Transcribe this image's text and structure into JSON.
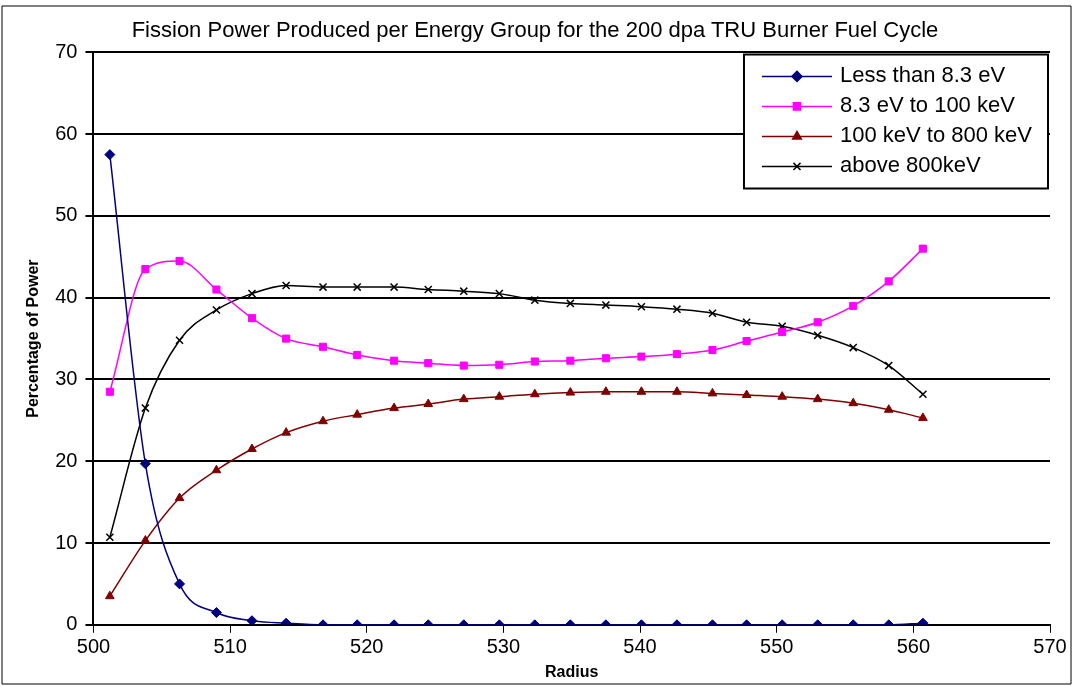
{
  "chart_data": {
    "type": "line",
    "title": "Fission Power Produced per Energy Group for the 200 dpa TRU Burner Fuel Cycle",
    "xlabel": "Radius",
    "ylabel": "Percentage of Power",
    "x": [
      501.2,
      503.8,
      506.3,
      509,
      511.6,
      514.1,
      516.8,
      519.3,
      522,
      524.5,
      527.1,
      529.7,
      532.3,
      534.9,
      537.5,
      540.1,
      542.7,
      545.3,
      547.8,
      550.4,
      553,
      555.6,
      558.2,
      560.7
    ],
    "series": [
      {
        "name": "Less than 8.3 eV",
        "color": "#000080",
        "marker": "diamond",
        "values": [
          57.5,
          19.7,
          5,
          1.5,
          0.5,
          0.2,
          0,
          0,
          0,
          0,
          0,
          0,
          0,
          0,
          0,
          0,
          0,
          0,
          0,
          0,
          0,
          0,
          0,
          0.2
        ]
      },
      {
        "name": "8.3 eV to 100 keV",
        "color": "#ff00ff",
        "marker": "square",
        "values": [
          28.5,
          43.5,
          44.5,
          41,
          37.5,
          35,
          34,
          33,
          32.3,
          32,
          31.7,
          31.8,
          32.2,
          32.3,
          32.6,
          32.8,
          33.1,
          33.6,
          34.7,
          35.8,
          37,
          39,
          42,
          46
        ]
      },
      {
        "name": "100 keV to 800 keV",
        "color": "#800000",
        "marker": "triangle",
        "values": [
          3.5,
          10.3,
          15.5,
          18.9,
          21.5,
          23.5,
          24.9,
          25.7,
          26.5,
          27,
          27.6,
          27.9,
          28.2,
          28.4,
          28.5,
          28.5,
          28.5,
          28.3,
          28.1,
          27.9,
          27.6,
          27.1,
          26.3,
          25.3
        ]
      },
      {
        "name": "above 800keV",
        "color": "#000000",
        "marker": "cross",
        "values": [
          10.7,
          26.5,
          34.8,
          38.5,
          40.5,
          41.5,
          41.3,
          41.3,
          41.3,
          41,
          40.8,
          40.5,
          39.7,
          39.3,
          39.1,
          38.9,
          38.6,
          38.1,
          37,
          36.5,
          35.4,
          33.9,
          31.7,
          28.2
        ]
      }
    ],
    "xlim": [
      500,
      570
    ],
    "xticks": [
      500,
      510,
      520,
      530,
      540,
      550,
      560,
      570
    ],
    "ylim": [
      0,
      70
    ],
    "yticks": [
      0,
      10,
      20,
      30,
      40,
      50,
      60,
      70
    ],
    "grid": "y",
    "legend": "top right"
  }
}
